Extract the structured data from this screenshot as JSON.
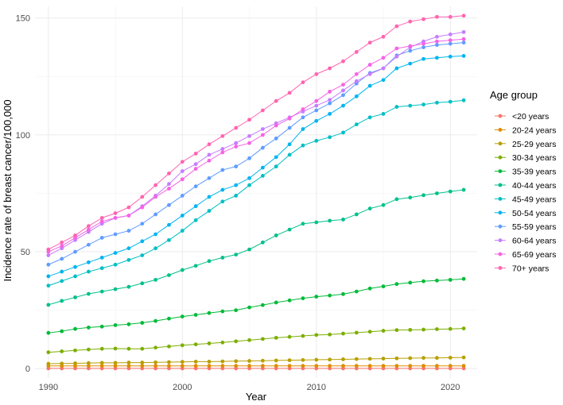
{
  "chart_data": {
    "type": "line",
    "xlabel": "Year",
    "ylabel": "Incidence rate of breast cancer/100,000",
    "xlim": [
      1989,
      2022
    ],
    "ylim": [
      -4,
      155
    ],
    "x_ticks": [
      1990,
      2000,
      2010,
      2020
    ],
    "y_ticks": [
      0,
      50,
      100,
      150
    ],
    "grid": true,
    "legend": {
      "title": "Age group",
      "position": "right"
    },
    "x": [
      1990,
      1991,
      1992,
      1993,
      1994,
      1995,
      1996,
      1997,
      1998,
      1999,
      2000,
      2001,
      2002,
      2003,
      2004,
      2005,
      2006,
      2007,
      2008,
      2009,
      2010,
      2011,
      2012,
      2013,
      2014,
      2015,
      2016,
      2017,
      2018,
      2019,
      2020,
      2021
    ],
    "series": [
      {
        "name": "<20 years",
        "color": "#F8766D",
        "values": [
          0.1,
          0.1,
          0.1,
          0.1,
          0.1,
          0.1,
          0.1,
          0.1,
          0.1,
          0.1,
          0.1,
          0.1,
          0.1,
          0.1,
          0.1,
          0.1,
          0.1,
          0.1,
          0.1,
          0.1,
          0.1,
          0.1,
          0.1,
          0.1,
          0.1,
          0.1,
          0.1,
          0.1,
          0.1,
          0.1,
          0.1,
          0.1
        ]
      },
      {
        "name": "20-24 years",
        "color": "#DE8C00",
        "values": [
          1.2,
          1.2,
          1.2,
          1.2,
          1.2,
          1.2,
          1.2,
          1.2,
          1.2,
          1.2,
          1.2,
          1.2,
          1.2,
          1.2,
          1.2,
          1.2,
          1.2,
          1.2,
          1.2,
          1.2,
          1.2,
          1.2,
          1.2,
          1.2,
          1.2,
          1.2,
          1.2,
          1.2,
          1.2,
          1.2,
          1.2,
          1.2
        ]
      },
      {
        "name": "25-29 years",
        "color": "#B79F00",
        "values": [
          2.1,
          2.2,
          2.3,
          2.4,
          2.5,
          2.5,
          2.6,
          2.6,
          2.7,
          2.8,
          2.9,
          3.0,
          3.0,
          3.1,
          3.2,
          3.3,
          3.4,
          3.5,
          3.6,
          3.7,
          3.8,
          3.9,
          4.0,
          4.1,
          4.2,
          4.3,
          4.4,
          4.5,
          4.6,
          4.6,
          4.7,
          4.8
        ]
      },
      {
        "name": "30-34 years",
        "color": "#7CAE00",
        "values": [
          7.0,
          7.4,
          7.8,
          8.2,
          8.5,
          8.6,
          8.5,
          8.5,
          9.0,
          9.5,
          10.0,
          10.4,
          10.8,
          11.2,
          11.7,
          12.2,
          12.7,
          13.2,
          13.6,
          14.0,
          14.4,
          14.6,
          15.0,
          15.4,
          15.8,
          16.2,
          16.5,
          16.6,
          16.7,
          16.9,
          17.0,
          17.2
        ]
      },
      {
        "name": "35-39 years",
        "color": "#00BA38",
        "values": [
          15.3,
          16.0,
          17.0,
          17.6,
          18.0,
          18.6,
          19.0,
          19.6,
          20.4,
          21.4,
          22.3,
          23.0,
          23.8,
          24.5,
          25.0,
          26.2,
          27.2,
          28.3,
          29.2,
          30.1,
          30.8,
          31.3,
          31.9,
          33.0,
          34.3,
          35.2,
          36.2,
          36.8,
          37.4,
          37.7,
          38.0,
          38.4
        ]
      },
      {
        "name": "40-44 years",
        "color": "#00C08B",
        "values": [
          27.3,
          29.0,
          30.5,
          32.0,
          33.0,
          34.0,
          35.0,
          36.5,
          38.0,
          40.0,
          42.2,
          44.0,
          46.0,
          47.5,
          48.8,
          51.0,
          54.0,
          57.0,
          59.5,
          62.0,
          62.6,
          63.3,
          63.8,
          66.0,
          68.5,
          70.0,
          72.5,
          73.2,
          74.2,
          75.0,
          75.8,
          76.5
        ]
      },
      {
        "name": "45-49 years",
        "color": "#00BFC4",
        "values": [
          35.5,
          37.5,
          39.5,
          41.5,
          43.0,
          44.5,
          46.5,
          48.5,
          51.5,
          55.0,
          59.0,
          63.5,
          67.5,
          71.5,
          74.0,
          78.5,
          82.5,
          86.5,
          91.5,
          95.5,
          97.5,
          99.0,
          101.0,
          104.5,
          107.5,
          109.0,
          112.0,
          112.5,
          113.0,
          113.8,
          114.2,
          114.8
        ]
      },
      {
        "name": "50-54 years",
        "color": "#00B4F0",
        "values": [
          39.5,
          41.5,
          43.5,
          45.5,
          47.5,
          49.5,
          51.5,
          54.5,
          57.5,
          61.5,
          65.5,
          69.5,
          73.5,
          76.5,
          78.5,
          81.5,
          86.0,
          90.5,
          96.0,
          102.5,
          106.0,
          109.0,
          112.5,
          116.5,
          121.0,
          123.5,
          128.5,
          130.5,
          132.5,
          133.0,
          133.5,
          133.8
        ]
      },
      {
        "name": "55-59 years",
        "color": "#619CFF",
        "values": [
          44.5,
          47.0,
          50.0,
          53.0,
          56.0,
          57.5,
          59.0,
          62.0,
          66.0,
          70.0,
          74.0,
          78.0,
          81.5,
          85.0,
          86.5,
          90.0,
          94.5,
          98.5,
          103.0,
          107.5,
          110.5,
          113.5,
          117.0,
          122.0,
          126.5,
          128.5,
          134.0,
          136.0,
          137.5,
          138.5,
          139.0,
          139.5
        ]
      },
      {
        "name": "60-64 years",
        "color": "#C77CFF",
        "values": [
          48.5,
          51.5,
          55.0,
          58.5,
          62.0,
          64.5,
          65.5,
          69.5,
          74.0,
          79.0,
          84.5,
          87.5,
          91.5,
          94.0,
          96.5,
          99.5,
          102.5,
          105.0,
          107.5,
          110.0,
          112.5,
          115.0,
          119.0,
          123.0,
          126.0,
          128.5,
          133.5,
          137.5,
          140.0,
          142.0,
          143.0,
          144.0
        ]
      },
      {
        "name": "65-69 years",
        "color": "#F564E3",
        "values": [
          50.0,
          52.5,
          56.0,
          59.5,
          63.0,
          64.5,
          65.5,
          69.0,
          73.5,
          77.0,
          81.0,
          85.5,
          89.0,
          92.5,
          95.0,
          96.5,
          100.0,
          104.0,
          107.0,
          111.0,
          114.5,
          118.5,
          121.5,
          126.0,
          130.0,
          133.0,
          137.0,
          138.0,
          139.0,
          140.0,
          140.5,
          141.0
        ]
      },
      {
        "name": "70+ years",
        "color": "#FF64B0",
        "values": [
          51.0,
          54.0,
          57.0,
          61.0,
          64.5,
          66.5,
          69.0,
          73.5,
          78.5,
          83.5,
          88.5,
          92.0,
          96.0,
          99.5,
          103.0,
          106.5,
          110.5,
          114.5,
          118.0,
          122.5,
          126.0,
          128.5,
          131.5,
          135.5,
          139.5,
          142.0,
          146.5,
          148.5,
          149.5,
          150.5,
          150.5,
          151.0
        ]
      }
    ]
  }
}
